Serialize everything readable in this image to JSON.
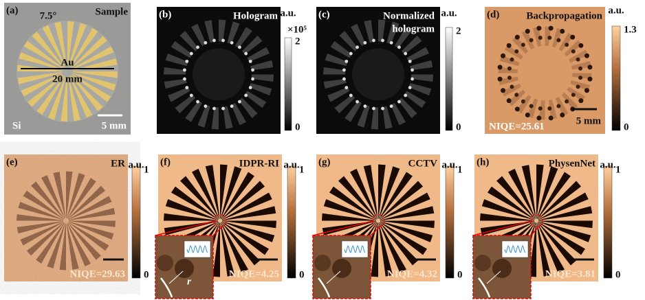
{
  "panels": [
    {
      "label": "(a)",
      "title": "Sample",
      "annotations": [
        "7.5°",
        "Au",
        "20 mm",
        "Si"
      ],
      "scale_bar": "5 mm"
    },
    {
      "label": "(b)",
      "title": "Hologram",
      "colorbar": {
        "unit": "a.u.",
        "multiplier": "×10⁵",
        "max": "2",
        "min": "0"
      }
    },
    {
      "label": "(c)",
      "title_lines": [
        "Normalized",
        "hologram"
      ],
      "colorbar": {
        "unit": "a.u.",
        "max": "2",
        "min": "0"
      }
    },
    {
      "label": "(d)",
      "title": "Backpropagation",
      "colorbar": {
        "unit": "a.u.",
        "max": "1.3",
        "min": "0"
      },
      "niqe": "NIQE=25.61",
      "scale_bar": "5 mm"
    },
    {
      "label": "(e)",
      "title": "ER",
      "colorbar": {
        "unit": "a.u.",
        "max": "1",
        "min": "0"
      },
      "niqe": "NIQE=29.63"
    },
    {
      "label": "(f)",
      "title": "IDPR-RI",
      "colorbar": {
        "unit": "a.u.",
        "max": "1",
        "min": "0"
      },
      "niqe": "NIQE=4.25",
      "inset_label": "r"
    },
    {
      "label": "(g)",
      "title": "CCTV",
      "colorbar": {
        "unit": "a.u.",
        "max": "1",
        "min": "0"
      },
      "niqe": "NIQE=4.32"
    },
    {
      "label": "(h)",
      "title": "PhysenNet",
      "colorbar": {
        "unit": "a.u.",
        "max": "1",
        "min": "0"
      },
      "niqe": "NIQE=3.81"
    }
  ]
}
